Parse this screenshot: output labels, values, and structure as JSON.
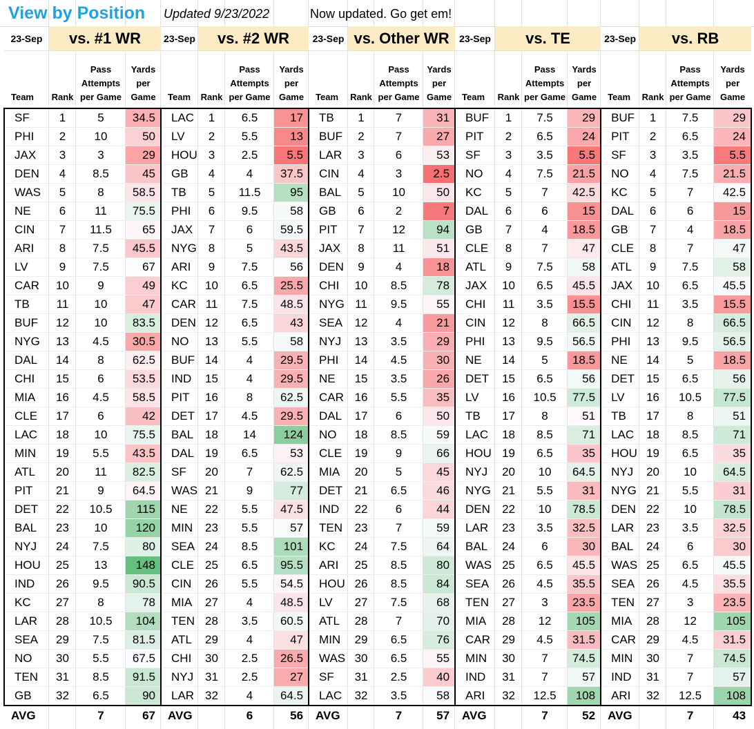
{
  "header": {
    "title": "View by Position",
    "updated": "Updated 9/23/2022",
    "notice": "Now updated. Go get em!"
  },
  "columns": {
    "team": "Team",
    "rank": "Rank",
    "attempts": "Pass Attempts per Game",
    "yards": "Yards per Game"
  },
  "colors": {
    "red_scale": "#f8696b",
    "green_scale": "#63be7b",
    "title_blue": "#1fa3e0",
    "section_bg": "#fcecc4"
  },
  "sections": [
    {
      "date": "23-Sep",
      "title": "vs. #1 WR",
      "avg_label": "AVG",
      "avg_attempts": "7",
      "avg_yards": "67",
      "rows": [
        [
          "SF",
          "1",
          "5",
          "34.5"
        ],
        [
          "PHI",
          "2",
          "10",
          "50"
        ],
        [
          "JAX",
          "3",
          "3",
          "29"
        ],
        [
          "DEN",
          "4",
          "8.5",
          "45"
        ],
        [
          "WAS",
          "5",
          "8",
          "58.5"
        ],
        [
          "NE",
          "6",
          "11",
          "75.5"
        ],
        [
          "CIN",
          "7",
          "11.5",
          "65"
        ],
        [
          "ARI",
          "8",
          "7.5",
          "45.5"
        ],
        [
          "LV",
          "9",
          "7.5",
          "67"
        ],
        [
          "CAR",
          "10",
          "9",
          "49"
        ],
        [
          "TB",
          "11",
          "10",
          "47"
        ],
        [
          "BUF",
          "12",
          "10",
          "83.5"
        ],
        [
          "NYG",
          "13",
          "4.5",
          "30.5"
        ],
        [
          "DAL",
          "14",
          "8",
          "62.5"
        ],
        [
          "CHI",
          "15",
          "6",
          "53.5"
        ],
        [
          "MIA",
          "16",
          "4.5",
          "58.5"
        ],
        [
          "CLE",
          "17",
          "6",
          "42"
        ],
        [
          "LAC",
          "18",
          "10",
          "75.5"
        ],
        [
          "MIN",
          "19",
          "5.5",
          "43.5"
        ],
        [
          "ATL",
          "20",
          "11",
          "82.5"
        ],
        [
          "PIT",
          "21",
          "9",
          "64.5"
        ],
        [
          "DET",
          "22",
          "10.5",
          "115"
        ],
        [
          "BAL",
          "23",
          "10",
          "120"
        ],
        [
          "NYJ",
          "24",
          "7.5",
          "80"
        ],
        [
          "HOU",
          "25",
          "13",
          "148"
        ],
        [
          "IND",
          "26",
          "9.5",
          "90.5"
        ],
        [
          "KC",
          "27",
          "8",
          "78"
        ],
        [
          "LAR",
          "28",
          "10.5",
          "104"
        ],
        [
          "SEA",
          "29",
          "7.5",
          "81.5"
        ],
        [
          "NO",
          "30",
          "5.5",
          "67.5"
        ],
        [
          "TEN",
          "31",
          "8.5",
          "91.5"
        ],
        [
          "GB",
          "32",
          "6.5",
          "90"
        ]
      ]
    },
    {
      "date": "23-Sep",
      "title": "vs. #2 WR",
      "avg_label": "AVG",
      "avg_attempts": "6",
      "avg_yards": "56",
      "rows": [
        [
          "LAC",
          "1",
          "6.5",
          "17"
        ],
        [
          "LV",
          "2",
          "5.5",
          "13"
        ],
        [
          "HOU",
          "3",
          "2.5",
          "5.5"
        ],
        [
          "GB",
          "4",
          "4",
          "37.5"
        ],
        [
          "TB",
          "5",
          "11.5",
          "95"
        ],
        [
          "PHI",
          "6",
          "9.5",
          "58"
        ],
        [
          "JAX",
          "7",
          "6",
          "59.5"
        ],
        [
          "NYG",
          "8",
          "5",
          "43.5"
        ],
        [
          "ARI",
          "9",
          "7.5",
          "56"
        ],
        [
          "KC",
          "10",
          "6.5",
          "25.5"
        ],
        [
          "CAR",
          "11",
          "7.5",
          "48.5"
        ],
        [
          "DEN",
          "12",
          "6.5",
          "43"
        ],
        [
          "NO",
          "13",
          "5.5",
          "58"
        ],
        [
          "BUF",
          "14",
          "4",
          "29.5"
        ],
        [
          "IND",
          "15",
          "4",
          "29.5"
        ],
        [
          "PIT",
          "16",
          "8",
          "62.5"
        ],
        [
          "DET",
          "17",
          "4.5",
          "29.5"
        ],
        [
          "BAL",
          "18",
          "14",
          "124"
        ],
        [
          "DAL",
          "19",
          "6.5",
          "53"
        ],
        [
          "SF",
          "20",
          "7",
          "62.5"
        ],
        [
          "WAS",
          "21",
          "9",
          "77"
        ],
        [
          "NE",
          "22",
          "5.5",
          "47.5"
        ],
        [
          "MIN",
          "23",
          "5.5",
          "57"
        ],
        [
          "SEA",
          "24",
          "8.5",
          "101"
        ],
        [
          "CLE",
          "25",
          "6.5",
          "95.5"
        ],
        [
          "CIN",
          "26",
          "5.5",
          "54.5"
        ],
        [
          "MIA",
          "27",
          "4",
          "48.5"
        ],
        [
          "TEN",
          "28",
          "3.5",
          "60.5"
        ],
        [
          "ATL",
          "29",
          "4",
          "47"
        ],
        [
          "CHI",
          "30",
          "2.5",
          "26.5"
        ],
        [
          "NYJ",
          "31",
          "2.5",
          "27"
        ],
        [
          "LAR",
          "32",
          "4",
          "64.5"
        ]
      ]
    },
    {
      "date": "23-Sep",
      "title": "vs. Other WR",
      "avg_label": "AVG",
      "avg_attempts": "7",
      "avg_yards": "57",
      "rows": [
        [
          "TB",
          "1",
          "7",
          "31"
        ],
        [
          "BUF",
          "2",
          "7",
          "27"
        ],
        [
          "LAR",
          "3",
          "6",
          "53"
        ],
        [
          "CIN",
          "4",
          "3",
          "2.5"
        ],
        [
          "BAL",
          "5",
          "10",
          "50"
        ],
        [
          "GB",
          "6",
          "2",
          "7"
        ],
        [
          "PIT",
          "7",
          "12",
          "94"
        ],
        [
          "JAX",
          "8",
          "11",
          "51"
        ],
        [
          "DEN",
          "9",
          "4",
          "18"
        ],
        [
          "CHI",
          "10",
          "8.5",
          "78"
        ],
        [
          "NYG",
          "11",
          "9.5",
          "55"
        ],
        [
          "SEA",
          "12",
          "4",
          "21"
        ],
        [
          "NYJ",
          "13",
          "3.5",
          "29"
        ],
        [
          "PHI",
          "14",
          "4.5",
          "30"
        ],
        [
          "NE",
          "15",
          "3.5",
          "26"
        ],
        [
          "CAR",
          "16",
          "5.5",
          "35"
        ],
        [
          "DAL",
          "17",
          "6",
          "50"
        ],
        [
          "NO",
          "18",
          "8.5",
          "59"
        ],
        [
          "CLE",
          "19",
          "9",
          "66"
        ],
        [
          "MIA",
          "20",
          "5",
          "45"
        ],
        [
          "DET",
          "21",
          "6.5",
          "46"
        ],
        [
          "IND",
          "22",
          "6",
          "44"
        ],
        [
          "TEN",
          "23",
          "7",
          "59"
        ],
        [
          "KC",
          "24",
          "7.5",
          "64"
        ],
        [
          "ARI",
          "25",
          "8.5",
          "80"
        ],
        [
          "HOU",
          "26",
          "8.5",
          "84"
        ],
        [
          "LV",
          "27",
          "7.5",
          "68"
        ],
        [
          "ATL",
          "28",
          "7",
          "70"
        ],
        [
          "MIN",
          "29",
          "6.5",
          "76"
        ],
        [
          "WAS",
          "30",
          "6.5",
          "55"
        ],
        [
          "SF",
          "31",
          "2.5",
          "40"
        ],
        [
          "LAC",
          "32",
          "3.5",
          "58"
        ]
      ]
    },
    {
      "date": "23-Sep",
      "title": "vs. TE",
      "avg_label": "AVG",
      "avg_attempts": "7",
      "avg_yards": "52",
      "rows": [
        [
          "BUF",
          "1",
          "7.5",
          "29"
        ],
        [
          "PIT",
          "2",
          "6.5",
          "24"
        ],
        [
          "SF",
          "3",
          "3.5",
          "5.5"
        ],
        [
          "NO",
          "4",
          "7.5",
          "21.5"
        ],
        [
          "KC",
          "5",
          "7",
          "42.5"
        ],
        [
          "DAL",
          "6",
          "6",
          "15"
        ],
        [
          "GB",
          "7",
          "4",
          "18.5"
        ],
        [
          "CLE",
          "8",
          "7",
          "47"
        ],
        [
          "ATL",
          "9",
          "7.5",
          "58"
        ],
        [
          "JAX",
          "10",
          "6.5",
          "45.5"
        ],
        [
          "CHI",
          "11",
          "3.5",
          "15.5"
        ],
        [
          "CIN",
          "12",
          "8",
          "66.5"
        ],
        [
          "PHI",
          "13",
          "9.5",
          "56.5"
        ],
        [
          "NE",
          "14",
          "5",
          "18.5"
        ],
        [
          "DET",
          "15",
          "6.5",
          "56"
        ],
        [
          "LV",
          "16",
          "10.5",
          "77.5"
        ],
        [
          "TB",
          "17",
          "8",
          "51"
        ],
        [
          "LAC",
          "18",
          "8.5",
          "71"
        ],
        [
          "HOU",
          "19",
          "6.5",
          "35"
        ],
        [
          "NYJ",
          "20",
          "10",
          "64.5"
        ],
        [
          "NYG",
          "21",
          "5.5",
          "31"
        ],
        [
          "DEN",
          "22",
          "10",
          "78.5"
        ],
        [
          "LAR",
          "23",
          "3.5",
          "32.5"
        ],
        [
          "BAL",
          "24",
          "6",
          "30"
        ],
        [
          "WAS",
          "25",
          "6.5",
          "45.5"
        ],
        [
          "SEA",
          "26",
          "4.5",
          "35.5"
        ],
        [
          "TEN",
          "27",
          "3",
          "23.5"
        ],
        [
          "MIA",
          "28",
          "12",
          "105"
        ],
        [
          "CAR",
          "29",
          "4.5",
          "31.5"
        ],
        [
          "MIN",
          "30",
          "7",
          "74.5"
        ],
        [
          "IND",
          "31",
          "7",
          "57"
        ],
        [
          "ARI",
          "32",
          "12.5",
          "108"
        ]
      ]
    },
    {
      "date": "23-Sep",
      "title": "vs. RB",
      "avg_label": "AVG",
      "avg_attempts": "7",
      "avg_yards": "43",
      "rows": [
        [
          "BUF",
          "1",
          "7.5",
          "29"
        ],
        [
          "PIT",
          "2",
          "6.5",
          "24"
        ],
        [
          "SF",
          "3",
          "3.5",
          "5.5"
        ],
        [
          "NO",
          "4",
          "7.5",
          "21.5"
        ],
        [
          "KC",
          "5",
          "7",
          "42.5"
        ],
        [
          "DAL",
          "6",
          "6",
          "15"
        ],
        [
          "GB",
          "7",
          "4",
          "18.5"
        ],
        [
          "CLE",
          "8",
          "7",
          "47"
        ],
        [
          "ATL",
          "9",
          "7.5",
          "58"
        ],
        [
          "JAX",
          "10",
          "6.5",
          "45.5"
        ],
        [
          "CHI",
          "11",
          "3.5",
          "15.5"
        ],
        [
          "CIN",
          "12",
          "8",
          "66.5"
        ],
        [
          "PHI",
          "13",
          "9.5",
          "56.5"
        ],
        [
          "NE",
          "14",
          "5",
          "18.5"
        ],
        [
          "DET",
          "15",
          "6.5",
          "56"
        ],
        [
          "LV",
          "16",
          "10.5",
          "77.5"
        ],
        [
          "TB",
          "17",
          "8",
          "51"
        ],
        [
          "LAC",
          "18",
          "8.5",
          "71"
        ],
        [
          "HOU",
          "19",
          "6.5",
          "35"
        ],
        [
          "NYJ",
          "20",
          "10",
          "64.5"
        ],
        [
          "NYG",
          "21",
          "5.5",
          "31"
        ],
        [
          "DEN",
          "22",
          "10",
          "78.5"
        ],
        [
          "LAR",
          "23",
          "3.5",
          "32.5"
        ],
        [
          "BAL",
          "24",
          "6",
          "30"
        ],
        [
          "WAS",
          "25",
          "6.5",
          "45.5"
        ],
        [
          "SEA",
          "26",
          "4.5",
          "35.5"
        ],
        [
          "TEN",
          "27",
          "3",
          "23.5"
        ],
        [
          "MIA",
          "28",
          "12",
          "105"
        ],
        [
          "CAR",
          "29",
          "4.5",
          "31.5"
        ],
        [
          "MIN",
          "30",
          "7",
          "74.5"
        ],
        [
          "IND",
          "31",
          "7",
          "57"
        ],
        [
          "ARI",
          "32",
          "12.5",
          "108"
        ]
      ]
    }
  ]
}
